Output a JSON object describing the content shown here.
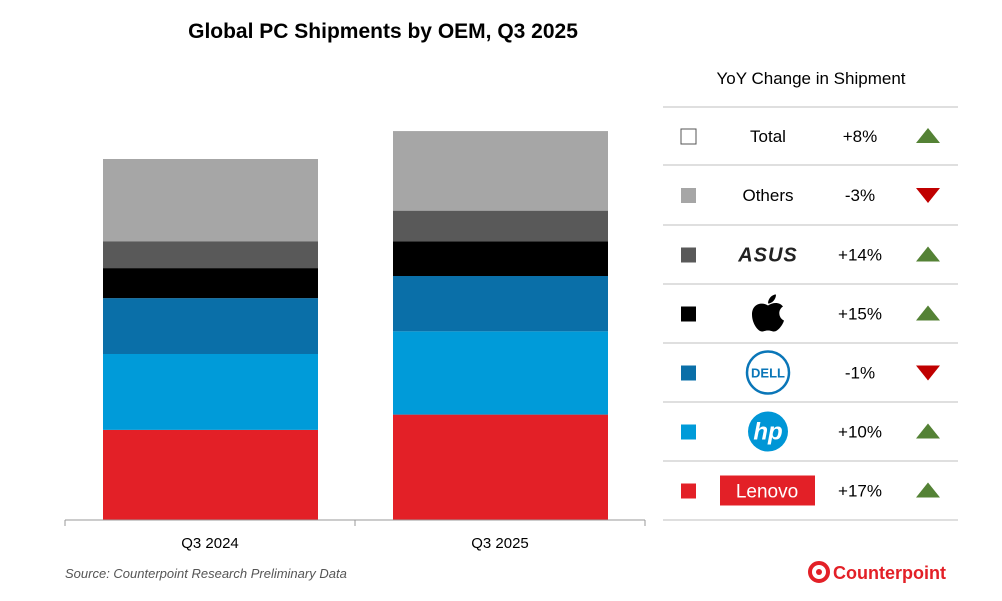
{
  "chart_data": {
    "type": "bar",
    "stacked": true,
    "title": "Global PC Shipments by OEM, Q3 2025",
    "categories": [
      "Q3 2024",
      "Q3 2025"
    ],
    "series": [
      {
        "name": "Lenovo",
        "color": "#e32027",
        "values": [
          17.1,
          20.0
        ]
      },
      {
        "name": "HP",
        "color": "#009bd9",
        "values": [
          14.4,
          15.8
        ]
      },
      {
        "name": "Dell",
        "color": "#0a6fa8",
        "values": [
          10.6,
          10.5
        ]
      },
      {
        "name": "Apple",
        "color": "#000000",
        "values": [
          5.7,
          6.6
        ]
      },
      {
        "name": "ASUS",
        "color": "#595959",
        "values": [
          5.1,
          5.8
        ]
      },
      {
        "name": "Others",
        "color": "#a6a6a6",
        "values": [
          15.6,
          15.1
        ]
      }
    ],
    "y_axis_shown": false,
    "grid": false,
    "legend_placement": "right",
    "source": "Source: Counterpoint Research Preliminary Data"
  },
  "yoy_table": {
    "title": "YoY Change in Shipment",
    "rows": [
      {
        "label": "Total",
        "logo": null,
        "color": "#ffffff",
        "change": "+8%",
        "direction": "up"
      },
      {
        "label": "Others",
        "logo": null,
        "color": "#a6a6a6",
        "change": "-3%",
        "direction": "down"
      },
      {
        "label": "ASUS",
        "logo": "asus-logo",
        "color": "#595959",
        "change": "+14%",
        "direction": "up"
      },
      {
        "label": "Apple",
        "logo": "apple-logo",
        "color": "#000000",
        "change": "+15%",
        "direction": "up"
      },
      {
        "label": "Dell",
        "logo": "dell-logo",
        "color": "#0a6fa8",
        "change": "-1%",
        "direction": "down"
      },
      {
        "label": "HP",
        "logo": "hp-logo",
        "color": "#009bd9",
        "change": "+10%",
        "direction": "up"
      },
      {
        "label": "Lenovo",
        "logo": "lenovo-logo",
        "color": "#e32027",
        "change": "+17%",
        "direction": "up"
      }
    ],
    "up_color": "#548235",
    "down_color": "#c00000"
  },
  "brand": {
    "name": "Counterpoint",
    "color": "#e32027"
  }
}
